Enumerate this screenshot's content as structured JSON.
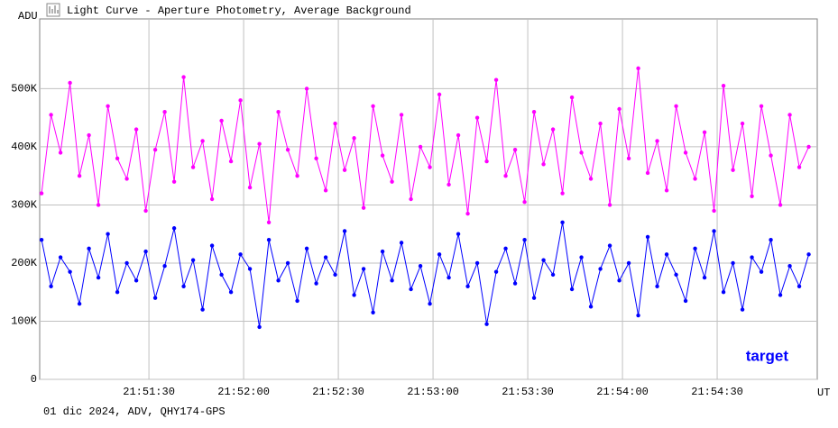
{
  "chart_data": {
    "type": "line",
    "title": "Light Curve - Aperture Photometry, Average Background",
    "y_label": "ADU",
    "x_label": "UT",
    "footer": "01 dic 2024, ADV, QHY174-GPS",
    "x": [
      78656,
      78659,
      78662,
      78665,
      78668,
      78671,
      78674,
      78677,
      78680,
      78683,
      78686,
      78689,
      78692,
      78695,
      78698,
      78701,
      78704,
      78707,
      78710,
      78713,
      78716,
      78719,
      78722,
      78725,
      78728,
      78731,
      78734,
      78737,
      78740,
      78743,
      78746,
      78749,
      78752,
      78755,
      78758,
      78761,
      78764,
      78767,
      78770,
      78773,
      78776,
      78779,
      78782,
      78785,
      78788,
      78791,
      78794,
      78797,
      78800,
      78803,
      78806,
      78809,
      78812,
      78815,
      78818,
      78821,
      78824,
      78827,
      78830,
      78833,
      78836,
      78839,
      78842,
      78845,
      78848,
      78851,
      78854,
      78857,
      78860,
      78863,
      78866,
      78869,
      78872,
      78875,
      78878,
      78881,
      78884,
      78887,
      78890,
      78893,
      78896,
      78899
    ],
    "series": [
      {
        "color": "#ff00ff",
        "values": [
          320000,
          455000,
          390000,
          510000,
          350000,
          420000,
          300000,
          470000,
          380000,
          345000,
          430000,
          290000,
          395000,
          460000,
          340000,
          520000,
          365000,
          410000,
          310000,
          445000,
          375000,
          480000,
          330000,
          405000,
          270000,
          460000,
          395000,
          350000,
          500000,
          380000,
          325000,
          440000,
          360000,
          415000,
          295000,
          470000,
          385000,
          340000,
          455000,
          310000,
          400000,
          365000,
          490000,
          335000,
          420000,
          285000,
          450000,
          375000,
          515000,
          350000,
          395000,
          305000,
          460000,
          370000,
          430000,
          320000,
          485000,
          390000,
          345000,
          440000,
          300000,
          465000,
          380000,
          535000,
          355000,
          410000,
          325000,
          470000,
          390000,
          345000,
          425000,
          290000,
          505000,
          360000,
          440000,
          315000,
          470000,
          385000,
          300000,
          455000,
          365000,
          400000
        ]
      },
      {
        "name": "target",
        "color": "#0000ff",
        "values": [
          240000,
          160000,
          210000,
          185000,
          130000,
          225000,
          175000,
          250000,
          150000,
          200000,
          170000,
          220000,
          140000,
          195000,
          260000,
          160000,
          205000,
          120000,
          230000,
          180000,
          150000,
          215000,
          190000,
          90000,
          240000,
          170000,
          200000,
          135000,
          225000,
          165000,
          210000,
          180000,
          255000,
          145000,
          190000,
          115000,
          220000,
          170000,
          235000,
          155000,
          195000,
          130000,
          215000,
          175000,
          250000,
          160000,
          200000,
          95000,
          185000,
          225000,
          165000,
          240000,
          140000,
          205000,
          180000,
          270000,
          155000,
          210000,
          125000,
          190000,
          230000,
          170000,
          200000,
          110000,
          245000,
          160000,
          215000,
          180000,
          135000,
          225000,
          175000,
          255000,
          150000,
          200000,
          120000,
          210000,
          185000,
          240000,
          145000,
          195000,
          160000,
          215000
        ]
      }
    ],
    "xlim": [
      78655.4,
      78901.7
    ],
    "xticks": [
      {
        "value": 78690,
        "label": "21:51:30"
      },
      {
        "value": 78720,
        "label": "21:52:00"
      },
      {
        "value": 78750,
        "label": "21:52:30"
      },
      {
        "value": 78780,
        "label": "21:53:00"
      },
      {
        "value": 78810,
        "label": "21:53:30"
      },
      {
        "value": 78840,
        "label": "21:54:00"
      },
      {
        "value": 78870,
        "label": "21:54:30"
      }
    ],
    "ylim": [
      0,
      620000
    ],
    "yticks": [
      0,
      {
        "value": 100000,
        "label": "100K"
      },
      {
        "value": 200000,
        "label": "200K"
      },
      {
        "value": 300000,
        "label": "300K"
      },
      {
        "value": 400000,
        "label": "400K"
      },
      {
        "value": 500000,
        "label": "500K"
      }
    ],
    "grid": true,
    "legend": "bottom-right"
  }
}
